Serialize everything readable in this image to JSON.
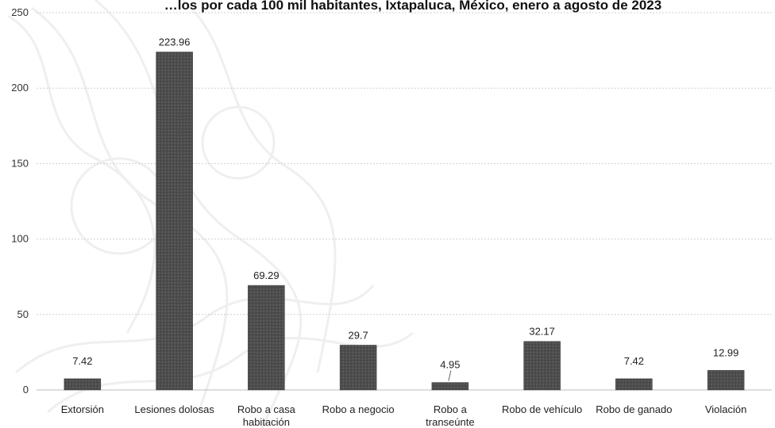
{
  "chart_data": {
    "type": "bar",
    "title": "…los por cada 100 mil habitantes, Ixtapaluca, México, enero a agosto de 2023",
    "categories": [
      [
        "Extorsión"
      ],
      [
        "Lesiones dolosas"
      ],
      [
        "Robo a casa",
        "habitación"
      ],
      [
        "Robo a negocio"
      ],
      [
        "Robo a",
        "transeúnte"
      ],
      [
        "Robo de vehículo"
      ],
      [
        "Robo de ganado"
      ],
      [
        "Violación"
      ]
    ],
    "values": [
      7.42,
      223.96,
      69.29,
      29.7,
      4.95,
      32.17,
      7.42,
      12.99
    ],
    "value_labels": [
      "7.42",
      "223.96",
      "69.29",
      "29.7",
      "4.95",
      "32.17",
      "7.42",
      "12.99"
    ],
    "yticks": [
      "0",
      "50",
      "100",
      "150",
      "200",
      "250"
    ],
    "ylim": [
      0,
      250
    ],
    "grid": true,
    "bar_color": "#4a4a4a"
  }
}
